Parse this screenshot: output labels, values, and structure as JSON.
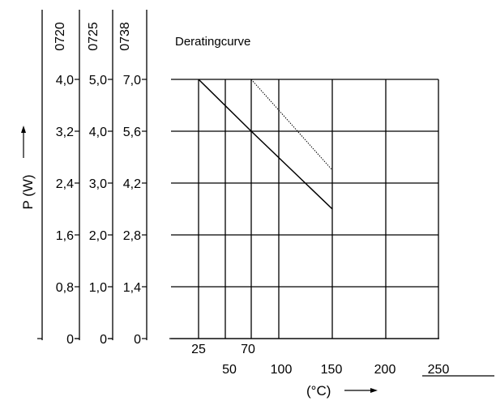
{
  "chart_data": {
    "type": "line",
    "title": "Deratingcurve",
    "xlabel": "(°C)",
    "ylabel": "P (W)",
    "x_ticks_row1": [
      "25",
      "70"
    ],
    "x_ticks_row2": [
      "50",
      "100",
      "150",
      "200",
      "250"
    ],
    "y_axes": [
      {
        "name": "0720",
        "ticks": [
          "0",
          "0,8",
          "1,6",
          "2,4",
          "3,2",
          "4,0"
        ]
      },
      {
        "name": "0725",
        "ticks": [
          "0",
          "1,0",
          "2,0",
          "3,0",
          "4,0",
          "5,0"
        ]
      },
      {
        "name": "0738",
        "ticks": [
          "0",
          "1,4",
          "2,8",
          "4,2",
          "5,6",
          "7,0"
        ]
      }
    ],
    "series": [
      {
        "x": [
          25,
          70,
          150
        ],
        "y_fraction": [
          1.0,
          0.8,
          0.5
        ],
        "style": "solid"
      },
      {
        "x": [
          70,
          150
        ],
        "y_fraction": [
          1.0,
          0.65
        ],
        "style": "dotted"
      }
    ],
    "colors": {
      "line": "#000000",
      "grid": "#000000"
    }
  }
}
